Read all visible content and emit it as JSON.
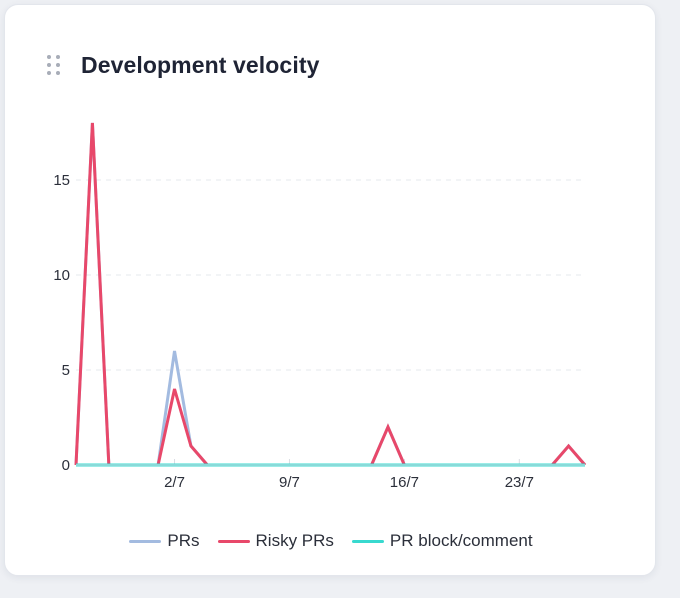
{
  "widget": {
    "title": "Development velocity"
  },
  "chart_data": {
    "type": "line",
    "x": [
      "26/6",
      "27/6",
      "28/6",
      "29/6",
      "30/6",
      "1/7",
      "2/7",
      "3/7",
      "4/7",
      "5/7",
      "6/7",
      "7/7",
      "8/7",
      "9/7",
      "10/7",
      "11/7",
      "12/7",
      "13/7",
      "14/7",
      "15/7",
      "16/7",
      "17/7",
      "18/7",
      "19/7",
      "20/7",
      "21/7",
      "22/7",
      "23/7",
      "24/7",
      "25/7",
      "26/7",
      "27/7"
    ],
    "x_tick_labels": [
      "2/7",
      "9/7",
      "16/7",
      "23/7"
    ],
    "y_ticks": [
      0,
      5,
      10,
      15
    ],
    "ylim": [
      0,
      18
    ],
    "grid": "horizontal-dashed",
    "legend_position": "bottom",
    "series": [
      {
        "name": "PRs",
        "color": "#a3bbe0",
        "values": [
          0,
          18,
          0,
          0,
          0,
          0,
          6,
          1,
          0,
          0,
          0,
          0,
          0,
          0,
          0,
          0,
          0,
          0,
          0,
          2,
          0,
          0,
          0,
          0,
          0,
          0,
          0,
          0,
          0,
          0,
          1,
          0
        ]
      },
      {
        "name": "Risky PRs",
        "color": "#e8486a",
        "values": [
          0,
          18,
          0,
          0,
          0,
          0,
          4,
          1,
          0,
          0,
          0,
          0,
          0,
          0,
          0,
          0,
          0,
          0,
          0,
          2,
          0,
          0,
          0,
          0,
          0,
          0,
          0,
          0,
          0,
          0,
          1,
          0
        ]
      },
      {
        "name": "PR block/comment",
        "color": "#38d9cf",
        "values": [
          0,
          0,
          0,
          0,
          0,
          0,
          0,
          0,
          0,
          0,
          0,
          0,
          0,
          0,
          0,
          0,
          0,
          0,
          0,
          0,
          0,
          0,
          0,
          0,
          0,
          0,
          0,
          0,
          0,
          0,
          0,
          0
        ]
      }
    ]
  }
}
